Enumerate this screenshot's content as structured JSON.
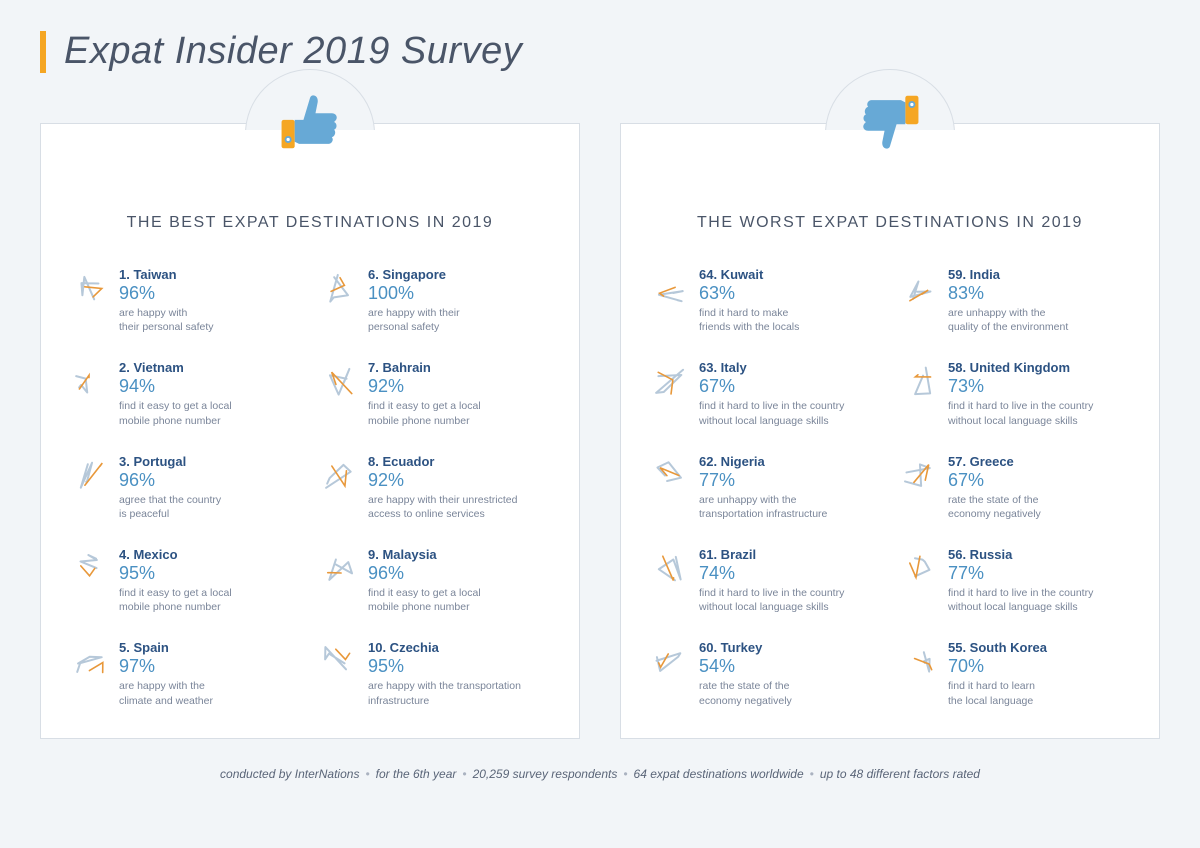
{
  "title": "Expat Insider 2019 Survey",
  "colors": {
    "background": "#f2f5f8",
    "panel_bg": "#ffffff",
    "panel_border": "#d8dee5",
    "accent_bar": "#f5a623",
    "title_color": "#4a5568",
    "heading_color": "#4a5568",
    "rank_color": "#2c5282",
    "pct_color": "#4a90c2",
    "desc_color": "#7a8599",
    "thumb_blue": "#67a9d6",
    "thumb_cuff": "#f5a623",
    "map_stroke1": "#b6c8d9",
    "map_stroke2": "#e8983a"
  },
  "best": {
    "heading": "THE BEST EXPAT DESTINATIONS IN 2019",
    "items": [
      {
        "rank": "1. Taiwan",
        "pct": "96%",
        "desc": "are happy with\ntheir personal safety"
      },
      {
        "rank": "6. Singapore",
        "pct": "100%",
        "desc": "are happy with their\npersonal safety"
      },
      {
        "rank": "2. Vietnam",
        "pct": "94%",
        "desc": "find it easy to get a local\nmobile phone number"
      },
      {
        "rank": "7. Bahrain",
        "pct": "92%",
        "desc": "find it easy to get a local\nmobile phone number"
      },
      {
        "rank": "3. Portugal",
        "pct": "96%",
        "desc": "agree that the country\nis peaceful"
      },
      {
        "rank": "8. Ecuador",
        "pct": "92%",
        "desc": "are happy with their unrestricted\naccess to online services"
      },
      {
        "rank": "4. Mexico",
        "pct": "95%",
        "desc": "find it easy to get a local\nmobile phone number"
      },
      {
        "rank": "9. Malaysia",
        "pct": "96%",
        "desc": "find it easy to get a local\nmobile phone number"
      },
      {
        "rank": "5. Spain",
        "pct": "97%",
        "desc": "are happy with the\nclimate and weather"
      },
      {
        "rank": "10. Czechia",
        "pct": "95%",
        "desc": "are happy with the transportation\ninfrastructure"
      }
    ]
  },
  "worst": {
    "heading": "THE WORST EXPAT DESTINATIONS IN 2019",
    "items": [
      {
        "rank": "64. Kuwait",
        "pct": "63%",
        "desc": "find it hard to make\nfriends with the locals"
      },
      {
        "rank": "59. India",
        "pct": "83%",
        "desc": "are unhappy with the\nquality of the environment"
      },
      {
        "rank": "63. Italy",
        "pct": "67%",
        "desc": "find it hard to live in the country\nwithout local language skills"
      },
      {
        "rank": "58. United Kingdom",
        "pct": "73%",
        "desc": "find it hard to live in the country\nwithout local language skills"
      },
      {
        "rank": "62. Nigeria",
        "pct": "77%",
        "desc": "are unhappy with the\ntransportation infrastructure"
      },
      {
        "rank": "57. Greece",
        "pct": "67%",
        "desc": "rate the state of the\n economy negatively"
      },
      {
        "rank": "61. Brazil",
        "pct": "74%",
        "desc": "find it hard to live in the country\nwithout local language skills"
      },
      {
        "rank": "56. Russia",
        "pct": "77%",
        "desc": "find it hard to live in the country\nwithout local language skills"
      },
      {
        "rank": "60. Turkey",
        "pct": "54%",
        "desc": "rate the state of the\neconomy negatively"
      },
      {
        "rank": "55. South Korea",
        "pct": "70%",
        "desc": "find it hard to learn\nthe local language"
      }
    ]
  },
  "footer": {
    "parts": [
      "conducted by InterNations",
      "for the 6th year",
      "20,259 survey respondents",
      "64 expat destinations worldwide",
      "up to 48 different factors rated"
    ]
  }
}
